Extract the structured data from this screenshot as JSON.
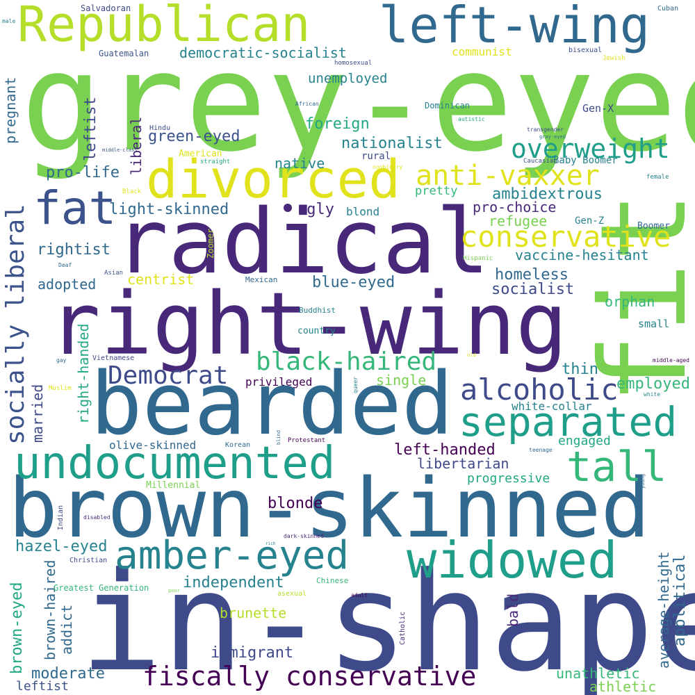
{
  "palette": {
    "green": "#7ad151",
    "lime": "#b5de2b",
    "yellow": "#e0e21c",
    "teal": "#1f9e89",
    "teal2": "#22a884",
    "green2": "#35b779",
    "blue": "#31688e",
    "blue2": "#26828e",
    "indigo": "#3e4a89",
    "slate": "#3b528b",
    "purple": "#482878",
    "dark": "#440154"
  },
  "words": [
    "grey-eyed",
    "fit",
    "in-shape",
    "brown-skinned",
    "radical",
    "right-wing",
    "bearded",
    "Republican",
    "left-wing",
    "divorced",
    "undocumented",
    "amber-eyed",
    "widowed",
    "separated",
    "fat",
    "tall",
    "conservative",
    "anti-vaxxer",
    "alcoholic",
    "black-haired",
    "fiscally conservative",
    "overweight",
    "socially liberal",
    "Democrat",
    "democratic-socialist",
    "light-skinned",
    "nationalist",
    "green-eyed",
    "pro-life",
    "ambidextrous",
    "vaccine-hesitant",
    "homeless",
    "blue-eyed",
    "socialist",
    "foreign",
    "native",
    "ugly",
    "pro-choice",
    "refugee",
    "unemployed",
    "rightist",
    "adopted",
    "centrist",
    "single",
    "employed",
    "thin",
    "orphan",
    "left-handed",
    "libertarian",
    "progressive",
    "engaged",
    "independent",
    "brunette",
    "immigrant",
    "moderate",
    "unathletic",
    "athletic",
    "blonde",
    "hazel-eyed",
    "leftist",
    "liberal",
    "pregnant",
    "blue-collar",
    "married",
    "right-handed",
    "brown-haired",
    "brown-eyed",
    "addict",
    "average-height",
    "apolitical",
    "bald",
    "underprivileged",
    "privileged",
    "olive-skinned",
    "white-collar",
    "communist",
    "pretty",
    "blond",
    "Gen-X",
    "Gen-Z",
    "Baby Boomer",
    "Boomer",
    "small",
    "rural",
    "American",
    "country",
    "Millennial",
    "Zoomer",
    "Greatest Generation",
    "Salvadoran",
    "Guatemalan",
    "homosexual",
    "bisexual",
    "Cuban",
    "Jewish",
    "African",
    "Dominican",
    "autistic",
    "transgender",
    "gray-eyed",
    "Hindu",
    "straight",
    "nonbinary",
    "Caucasian",
    "female",
    "middle-class",
    "male",
    "Black",
    "Hispanic",
    "Deaf",
    "Asian",
    "Mexican",
    "Buddhist",
    "Vietnamese",
    "gay",
    "Muslim",
    "queer",
    "Korean",
    "blind",
    "Protestant",
    "teenage",
    "young",
    "old",
    "white",
    "middle-aged",
    "Indian",
    "disabled",
    "dark-skinned",
    "rich",
    "Christian",
    "Chinese",
    "poor",
    "adult",
    "asexual",
    "Catholic"
  ]
}
